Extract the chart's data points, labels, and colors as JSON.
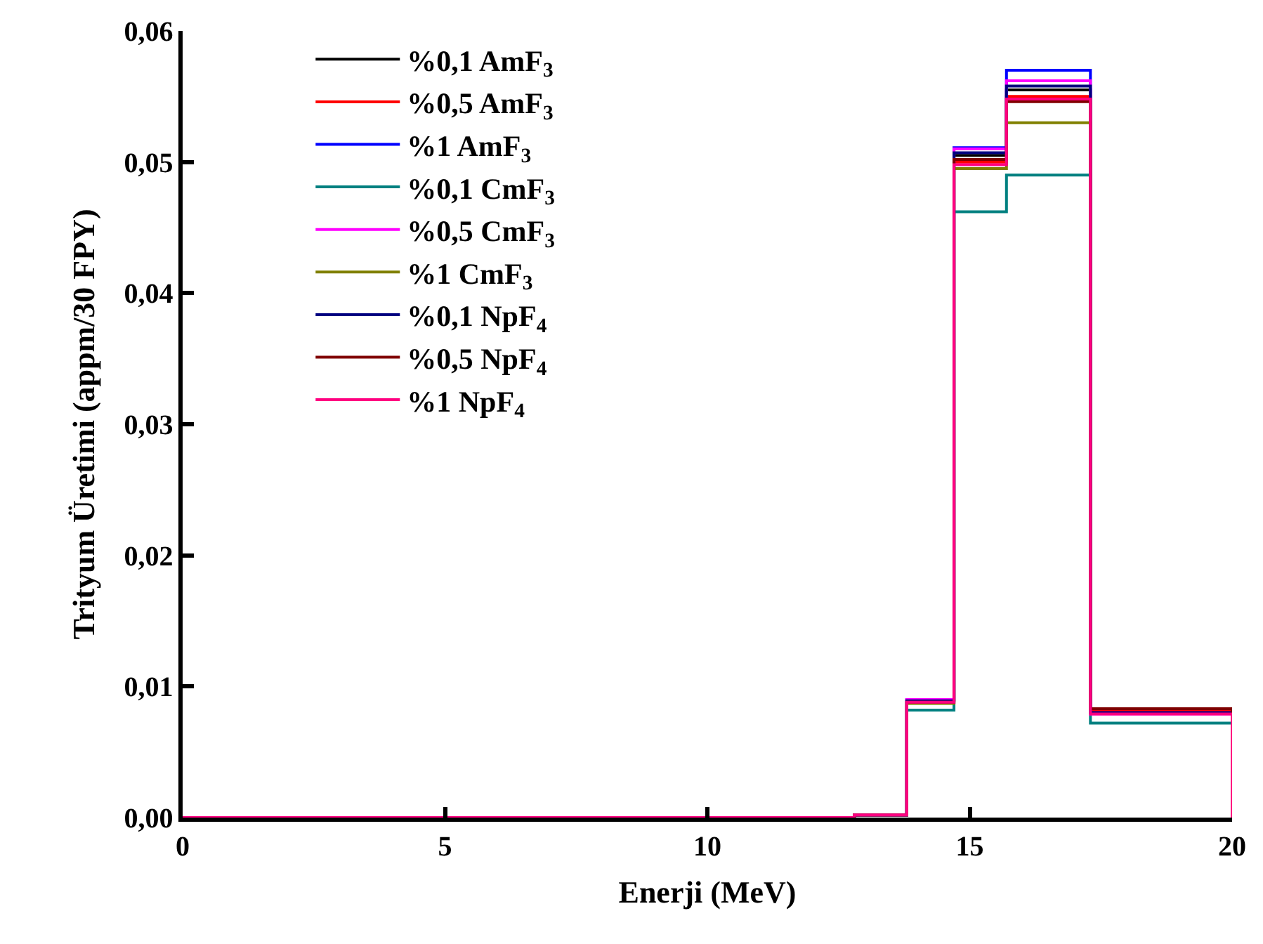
{
  "chart_data": {
    "type": "histogram",
    "xlabel": "Enerji (MeV)",
    "ylabel": "Trityum Üretimi (appm/30 FPY)",
    "bins": [
      0,
      12.8,
      13.8,
      14.7,
      15.7,
      17.3,
      20
    ],
    "series": [
      {
        "name": "%0,1 AmF$_{3}$",
        "color": "#000000",
        "values": [
          0,
          0.0002,
          0.0089,
          0.0505,
          0.0555,
          0.0081
        ]
      },
      {
        "name": "%0,5 AmF$_{3}$",
        "color": "#ff0000",
        "values": [
          0,
          0.0002,
          0.0088,
          0.05,
          0.055,
          0.0082
        ]
      },
      {
        "name": "%1 AmF$_{3}$",
        "color": "#0000ff",
        "values": [
          0,
          0.0002,
          0.009,
          0.0511,
          0.057,
          0.008
        ]
      },
      {
        "name": "%0,1 CmF$_{3}$",
        "color": "#008080",
        "values": [
          0,
          0.0002,
          0.0082,
          0.0462,
          0.049,
          0.0072
        ]
      },
      {
        "name": "%0,5 CmF$_{3}$",
        "color": "#ff00ff",
        "values": [
          0,
          0.0002,
          0.009,
          0.051,
          0.0562,
          0.0079
        ]
      },
      {
        "name": "%1 CmF$_{3}$",
        "color": "#808000",
        "values": [
          0,
          0.0002,
          0.0087,
          0.0495,
          0.053,
          0.0083
        ]
      },
      {
        "name": "%0,1 NpF$_{4}$",
        "color": "#000080",
        "values": [
          0,
          0.0002,
          0.0089,
          0.0507,
          0.0558,
          0.008
        ]
      },
      {
        "name": "%0,5 NpF$_{4}$",
        "color": "#800000",
        "values": [
          0,
          0.0002,
          0.0088,
          0.0502,
          0.0546,
          0.0083
        ]
      },
      {
        "name": "%1 NpF$_{4}$",
        "color": "#ff0080",
        "values": [
          0,
          0.0002,
          0.0088,
          0.0498,
          0.0548,
          0.0079
        ]
      }
    ],
    "xlim": [
      0,
      20
    ],
    "xticks": [
      0,
      5,
      10,
      15,
      20
    ],
    "ylim": [
      0,
      0.06
    ],
    "yticks": [
      {
        "value": 0,
        "label": "0,00"
      },
      {
        "value": 0.01,
        "label": "0,01"
      },
      {
        "value": 0.02,
        "label": "0,02"
      },
      {
        "value": 0.03,
        "label": "0,03"
      },
      {
        "value": 0.04,
        "label": "0,04"
      },
      {
        "value": 0.05,
        "label": "0,05"
      },
      {
        "value": 0.06,
        "label": "0,06"
      }
    ],
    "legend": "top left"
  }
}
